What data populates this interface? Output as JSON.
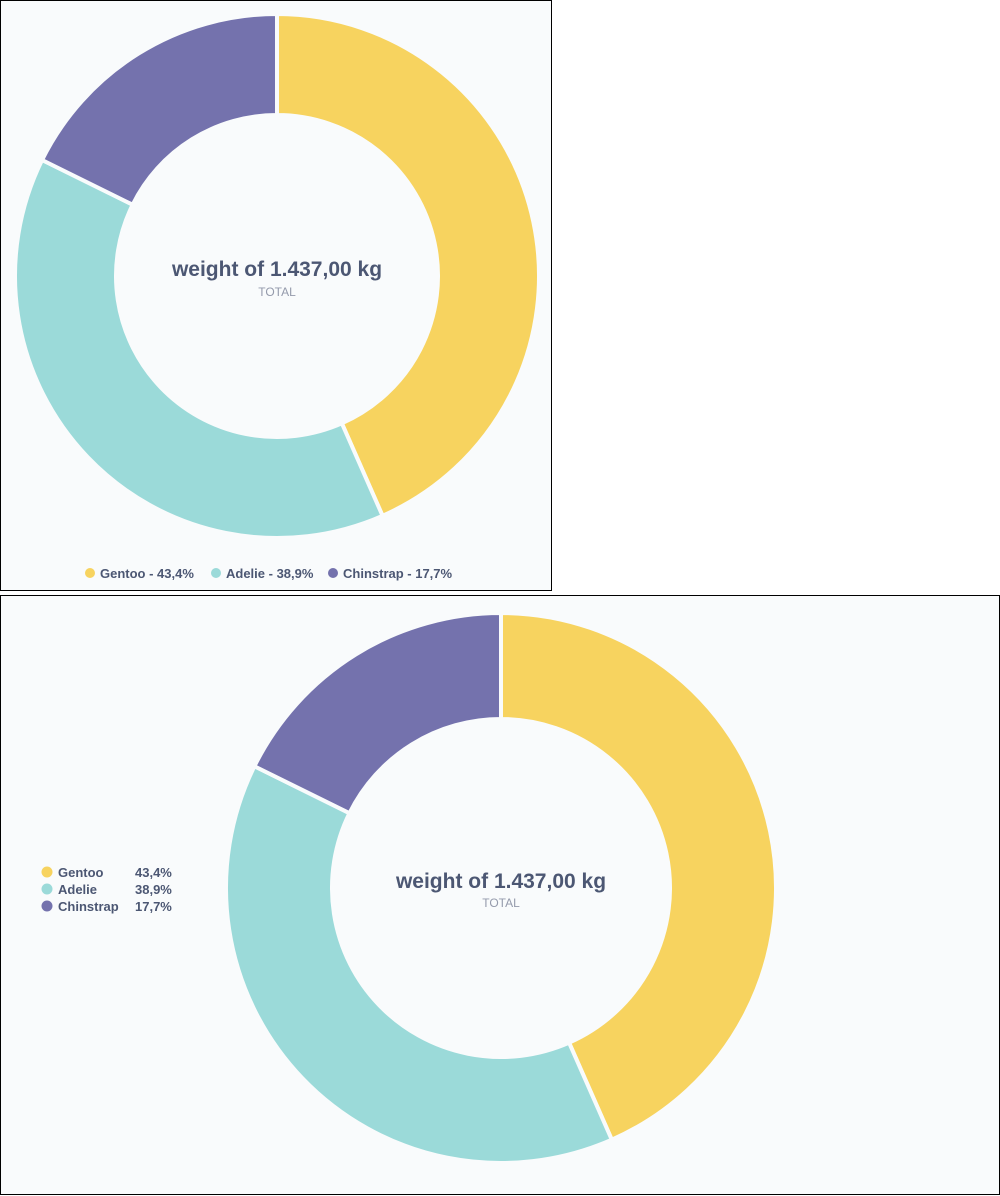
{
  "colors": {
    "gentoo": "#f7d35f",
    "adelie": "#9bdad9",
    "chinstrap": "#7472ad",
    "background": "#f9fbfc",
    "text": "#4c5773",
    "muted": "#949aab"
  },
  "chart_data": [
    {
      "type": "pie",
      "variant": "donut",
      "center_value": "weight of 1.437,00 kg",
      "center_label": "TOTAL",
      "legend_position": "bottom",
      "slices": [
        {
          "name": "Gentoo",
          "percent": 43.4,
          "percent_label": "43,4%",
          "legend_label": "Gentoo - 43,4%",
          "color": "#f7d35f"
        },
        {
          "name": "Adelie",
          "percent": 38.9,
          "percent_label": "38,9%",
          "legend_label": "Adelie - 38,9%",
          "color": "#9bdad9"
        },
        {
          "name": "Chinstrap",
          "percent": 17.7,
          "percent_label": "17,7%",
          "legend_label": "Chinstrap - 17,7%",
          "color": "#7472ad"
        }
      ]
    },
    {
      "type": "pie",
      "variant": "donut",
      "center_value": "weight of 1.437,00 kg",
      "center_label": "TOTAL",
      "legend_position": "left",
      "slices": [
        {
          "name": "Gentoo",
          "percent": 43.4,
          "percent_label": "43,4%",
          "color": "#f7d35f"
        },
        {
          "name": "Adelie",
          "percent": 38.9,
          "percent_label": "38,9%",
          "color": "#9bdad9"
        },
        {
          "name": "Chinstrap",
          "percent": 17.7,
          "percent_label": "17,7%",
          "color": "#7472ad"
        }
      ]
    }
  ]
}
